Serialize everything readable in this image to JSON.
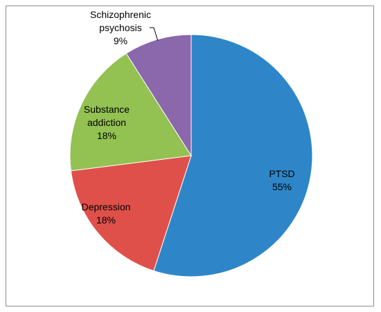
{
  "chart_data": {
    "type": "pie",
    "title": "",
    "slices": [
      {
        "label_lines": [
          "PTSD",
          "55%"
        ],
        "value": 55,
        "color": "#2e86c8"
      },
      {
        "label_lines": [
          "Depression",
          "18%"
        ],
        "value": 18,
        "color": "#e0504a"
      },
      {
        "label_lines": [
          "Substance",
          "addiction",
          "18%"
        ],
        "value": 18,
        "color": "#93c152"
      },
      {
        "label_lines": [
          "Schizophrenic",
          "psychosis",
          "9%"
        ],
        "value": 9,
        "color": "#8a68ab"
      }
    ],
    "legend": "none",
    "start_angle": "12 o'clock",
    "direction": "clockwise"
  }
}
